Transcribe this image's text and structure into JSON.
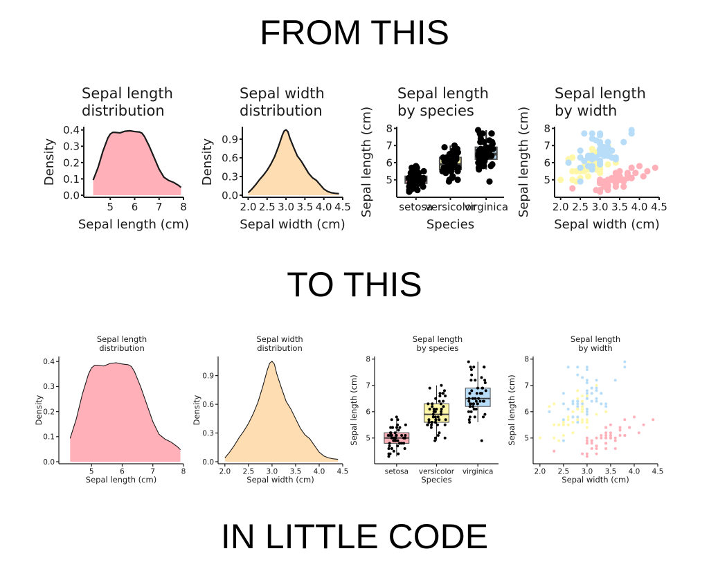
{
  "headings": {
    "from": "FROM THIS",
    "to": "TO THIS",
    "code": "IN LITTLE CODE"
  },
  "colors": {
    "setosa": "#FFB0B9",
    "versicolor": "#FFF7A8",
    "virginica": "#B8DDF8",
    "sepal_width_fill": "#FFDDB3",
    "outline": "#1a1a1a"
  },
  "chart_data": [
    {
      "id": "sl-dist",
      "type": "area",
      "title": [
        "Sepal length",
        "distribution"
      ],
      "xlabel": "Sepal length (cm)",
      "ylabel": "Density",
      "xlim": [
        4.0,
        8.0
      ],
      "ylim": [
        0.0,
        0.42
      ],
      "xticks": [
        "5",
        "6",
        "7",
        "8"
      ],
      "xtick_values": [
        5,
        6,
        7,
        8
      ],
      "yticks": [
        "0.0",
        "0.1",
        "0.2",
        "0.3",
        "0.4"
      ],
      "ytick_values": [
        0,
        0.1,
        0.2,
        0.3,
        0.4
      ],
      "fill": "#FFB0B9",
      "x": [
        4.3,
        4.5,
        4.7,
        4.9,
        5.0,
        5.1,
        5.2,
        5.4,
        5.6,
        5.8,
        6.0,
        6.2,
        6.3,
        6.4,
        6.6,
        6.8,
        7.0,
        7.2,
        7.4,
        7.6,
        7.8,
        7.9
      ],
      "y": [
        0.093,
        0.17,
        0.27,
        0.35,
        0.375,
        0.385,
        0.385,
        0.382,
        0.392,
        0.395,
        0.39,
        0.387,
        0.38,
        0.36,
        0.3,
        0.23,
        0.16,
        0.11,
        0.09,
        0.078,
        0.06,
        0.048
      ]
    },
    {
      "id": "sw-dist",
      "type": "area",
      "title": [
        "Sepal width",
        "distribution"
      ],
      "xlabel": "Sepal width (cm)",
      "ylabel": "Density",
      "xlim": [
        1.9,
        4.5
      ],
      "ylim": [
        0.0,
        1.1
      ],
      "xticks": [
        "2.0",
        "2.5",
        "3.0",
        "3.5",
        "4.0",
        "4.5"
      ],
      "xtick_values": [
        2.0,
        2.5,
        3.0,
        3.5,
        4.0,
        4.5
      ],
      "yticks": [
        "0.0",
        "0.3",
        "0.6",
        "0.9"
      ],
      "ytick_values": [
        0,
        0.3,
        0.6,
        0.9
      ],
      "fill": "#FFDDB3",
      "x": [
        2.0,
        2.1,
        2.2,
        2.3,
        2.4,
        2.5,
        2.6,
        2.7,
        2.8,
        2.9,
        2.95,
        3.0,
        3.05,
        3.1,
        3.2,
        3.3,
        3.4,
        3.5,
        3.6,
        3.7,
        3.8,
        3.9,
        4.0,
        4.1,
        4.2,
        4.3,
        4.4
      ],
      "y": [
        0.04,
        0.1,
        0.17,
        0.25,
        0.32,
        0.4,
        0.5,
        0.62,
        0.78,
        0.96,
        1.03,
        1.05,
        1.02,
        0.92,
        0.77,
        0.63,
        0.55,
        0.45,
        0.35,
        0.28,
        0.24,
        0.17,
        0.1,
        0.06,
        0.04,
        0.03,
        0.025
      ]
    },
    {
      "id": "sl-species",
      "type": "box",
      "title": [
        "Sepal length",
        "by species"
      ],
      "xlabel": "Species",
      "ylabel": "Sepal length (cm)",
      "ylim": [
        4.1,
        8.1
      ],
      "yticks": [
        "5",
        "6",
        "7",
        "8"
      ],
      "ytick_values": [
        5,
        6,
        7,
        8
      ],
      "categories": [
        "setosa",
        "versicolor",
        "virginica"
      ],
      "boxes": [
        {
          "q1": 4.8,
          "median": 5.0,
          "q3": 5.2,
          "whisker_low": 4.3,
          "whisker_high": 5.8,
          "fill": "#FFB0B9"
        },
        {
          "q1": 5.6,
          "median": 5.9,
          "q3": 6.3,
          "whisker_low": 4.9,
          "whisker_high": 7.0,
          "fill": "#FFF7A8"
        },
        {
          "q1": 6.2,
          "median": 6.5,
          "q3": 6.9,
          "whisker_low": 5.6,
          "whisker_high": 7.9,
          "fill": "#B8DDF8"
        }
      ],
      "points": [
        [
          5.1,
          4.9,
          4.7,
          4.6,
          5.0,
          5.4,
          4.6,
          5.0,
          4.4,
          4.9,
          5.4,
          4.8,
          4.8,
          4.3,
          5.8,
          5.7,
          5.4,
          5.1,
          5.7,
          5.1,
          5.4,
          5.1,
          4.6,
          5.1,
          4.8,
          5.0,
          5.0,
          5.2,
          5.2,
          4.7,
          4.8,
          5.4,
          5.2,
          5.5,
          4.9,
          5.0,
          5.5,
          4.9,
          4.4,
          5.1,
          5.0,
          4.5,
          4.4,
          5.0,
          5.1,
          4.8,
          5.1,
          4.6,
          5.3,
          5.0
        ],
        [
          7.0,
          6.4,
          6.9,
          5.5,
          6.5,
          5.7,
          6.3,
          4.9,
          6.6,
          5.2,
          5.0,
          5.9,
          6.0,
          6.1,
          5.6,
          6.7,
          5.6,
          5.8,
          6.2,
          5.6,
          5.9,
          6.1,
          6.3,
          6.1,
          6.4,
          6.6,
          6.8,
          6.7,
          6.0,
          5.7,
          5.5,
          5.5,
          5.8,
          6.0,
          5.4,
          6.0,
          6.7,
          6.3,
          5.6,
          5.5,
          5.5,
          6.1,
          5.8,
          5.0,
          5.6,
          5.7,
          5.7,
          6.2,
          5.1,
          5.7
        ],
        [
          6.3,
          5.8,
          7.1,
          6.3,
          6.5,
          7.6,
          4.9,
          7.3,
          6.7,
          7.2,
          6.5,
          6.4,
          6.8,
          5.7,
          5.8,
          6.4,
          6.5,
          7.7,
          7.7,
          6.0,
          6.9,
          5.6,
          7.7,
          6.3,
          6.7,
          7.2,
          6.2,
          6.1,
          6.4,
          7.2,
          7.4,
          7.9,
          6.4,
          6.3,
          6.1,
          7.7,
          6.3,
          6.4,
          6.0,
          6.9,
          6.7,
          6.9,
          5.8,
          6.8,
          6.7,
          6.7,
          6.3,
          6.5,
          6.2,
          5.9
        ]
      ]
    },
    {
      "id": "sl-by-width",
      "type": "scatter",
      "title": [
        "Sepal length",
        "by width"
      ],
      "xlabel": "Sepal width (cm)",
      "ylabel": "Sepal length (cm)",
      "xlim": [
        1.9,
        4.5
      ],
      "ylim": [
        4.1,
        8.1
      ],
      "xticks": [
        "2.0",
        "2.5",
        "3.0",
        "3.5",
        "4.0",
        "4.5"
      ],
      "xtick_values": [
        2.0,
        2.5,
        3.0,
        3.5,
        4.0,
        4.5
      ],
      "yticks": [
        "5",
        "6",
        "7",
        "8"
      ],
      "ytick_values": [
        5,
        6,
        7,
        8
      ],
      "series": [
        {
          "name": "setosa",
          "color": "#FFB0B9",
          "x": [
            3.5,
            3.0,
            3.2,
            3.1,
            3.6,
            3.9,
            3.4,
            3.4,
            2.9,
            3.1,
            3.7,
            3.4,
            3.0,
            3.0,
            4.0,
            4.4,
            3.9,
            3.5,
            3.8,
            3.8,
            3.4,
            3.7,
            3.6,
            3.3,
            3.4,
            3.0,
            3.4,
            3.5,
            3.4,
            3.2,
            3.1,
            3.4,
            4.1,
            4.2,
            3.1,
            3.2,
            3.5,
            3.6,
            3.0,
            3.4,
            3.5,
            2.3,
            3.2,
            3.5,
            3.8,
            3.0,
            3.8,
            3.2,
            3.7,
            3.3
          ],
          "y": [
            5.1,
            4.9,
            4.7,
            4.6,
            5.0,
            5.4,
            4.6,
            5.0,
            4.4,
            4.9,
            5.4,
            4.8,
            4.8,
            4.3,
            5.8,
            5.7,
            5.4,
            5.1,
            5.7,
            5.1,
            5.4,
            5.1,
            4.6,
            5.1,
            4.8,
            5.0,
            5.0,
            5.2,
            5.2,
            4.7,
            4.8,
            5.4,
            5.2,
            5.5,
            4.9,
            5.0,
            5.5,
            4.9,
            4.4,
            5.1,
            5.0,
            4.5,
            4.4,
            5.0,
            5.1,
            4.8,
            5.1,
            4.6,
            5.3,
            5.0
          ]
        },
        {
          "name": "versicolor",
          "color": "#FFF7A8",
          "x": [
            3.2,
            3.2,
            3.1,
            2.3,
            2.8,
            2.8,
            3.3,
            2.4,
            2.9,
            2.7,
            2.0,
            3.0,
            2.2,
            2.9,
            2.9,
            3.1,
            3.0,
            2.7,
            2.2,
            2.5,
            3.2,
            2.8,
            2.5,
            2.8,
            2.9,
            3.0,
            2.8,
            3.0,
            2.9,
            2.6,
            2.4,
            2.4,
            2.7,
            2.7,
            3.0,
            3.4,
            3.1,
            2.3,
            3.0,
            2.5,
            2.6,
            3.0,
            2.6,
            2.3,
            2.7,
            3.0,
            2.9,
            2.9,
            2.5,
            2.8
          ],
          "y": [
            7.0,
            6.4,
            6.9,
            5.5,
            6.5,
            5.7,
            6.3,
            4.9,
            6.6,
            5.2,
            5.0,
            5.9,
            6.0,
            6.1,
            5.6,
            6.7,
            5.6,
            5.8,
            6.2,
            5.6,
            5.9,
            6.1,
            6.3,
            6.1,
            6.4,
            6.6,
            6.8,
            6.7,
            6.0,
            5.7,
            5.5,
            5.5,
            5.8,
            6.0,
            5.4,
            6.0,
            6.7,
            6.3,
            5.6,
            5.5,
            5.5,
            6.1,
            5.8,
            5.0,
            5.6,
            5.7,
            5.7,
            6.2,
            5.1,
            5.7
          ]
        },
        {
          "name": "virginica",
          "color": "#B8DDF8",
          "x": [
            3.3,
            2.7,
            3.0,
            2.9,
            3.0,
            3.0,
            2.5,
            2.9,
            2.5,
            3.6,
            3.2,
            2.7,
            3.0,
            2.5,
            2.8,
            3.2,
            3.0,
            3.8,
            2.6,
            2.2,
            3.2,
            2.8,
            2.8,
            2.7,
            3.3,
            3.2,
            2.8,
            3.0,
            2.8,
            3.0,
            2.8,
            3.8,
            2.8,
            2.8,
            2.6,
            3.0,
            3.4,
            3.1,
            3.0,
            3.1,
            3.1,
            3.1,
            2.7,
            3.2,
            3.3,
            3.0,
            2.5,
            3.0,
            3.4,
            3.0
          ],
          "y": [
            6.3,
            5.8,
            7.1,
            6.3,
            6.5,
            7.6,
            4.9,
            7.3,
            6.7,
            7.2,
            6.5,
            6.4,
            6.8,
            5.7,
            5.8,
            6.4,
            6.5,
            7.7,
            7.7,
            6.0,
            6.9,
            5.6,
            7.7,
            6.3,
            6.7,
            7.2,
            6.2,
            6.1,
            6.4,
            7.2,
            7.4,
            7.9,
            6.4,
            6.3,
            6.1,
            7.7,
            6.3,
            6.4,
            6.0,
            6.9,
            6.7,
            6.9,
            5.8,
            6.8,
            6.7,
            6.7,
            6.3,
            6.5,
            6.2,
            5.9
          ]
        }
      ]
    }
  ]
}
